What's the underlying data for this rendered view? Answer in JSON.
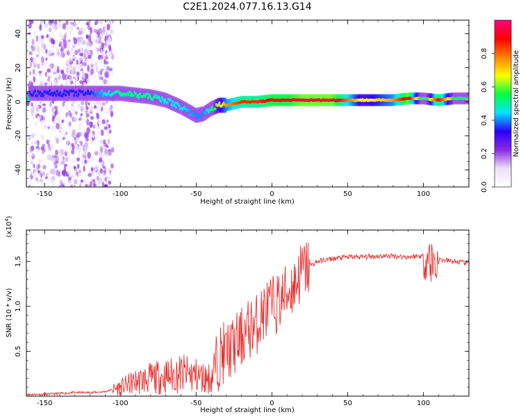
{
  "figure": {
    "title": "C2E1.2024.077.16.13.G14"
  },
  "chart_data": [
    {
      "type": "heatmap",
      "xlabel": "Height of straight line (km)",
      "ylabel": "Frequency (Hz)",
      "xlim": [
        -162,
        130
      ],
      "ylim": [
        -50,
        48
      ],
      "xticks": [
        -150,
        -100,
        -50,
        0,
        50,
        100
      ],
      "yticks": [
        -40,
        -20,
        0,
        20,
        40
      ],
      "colorbar": {
        "label": "Normalized spectral amplitude",
        "range": [
          0,
          1
        ],
        "ticks": [
          0.0,
          0.2,
          0.4,
          0.6,
          0.8
        ],
        "colormap": [
          "#ffffff",
          "#ece0fa",
          "#8a2be2",
          "#2b00ff",
          "#00e5ff",
          "#00ff40",
          "#ffff00",
          "#ff8000",
          "#ff0000",
          "#ff0080"
        ]
      },
      "ridge": {
        "x": [
          -160,
          -150,
          -140,
          -130,
          -120,
          -110,
          -100,
          -90,
          -80,
          -70,
          -60,
          -50,
          -45,
          -40,
          -35,
          -30,
          -20,
          -10,
          0,
          10,
          20,
          40,
          60,
          80,
          90,
          100,
          110,
          120,
          130
        ],
        "freq": [
          5,
          5,
          5,
          5,
          5,
          5,
          5,
          4,
          3,
          1,
          -3,
          -8,
          -7,
          -4,
          -2,
          -2,
          0,
          0,
          1,
          1,
          1,
          1,
          1,
          1,
          2,
          2,
          1,
          2,
          2
        ],
        "amp": [
          0.35,
          0.35,
          0.35,
          0.35,
          0.35,
          0.45,
          0.5,
          0.5,
          0.5,
          0.45,
          0.45,
          0.4,
          0.4,
          0.5,
          0.65,
          0.75,
          0.85,
          0.85,
          0.9,
          0.9,
          0.95,
          0.95,
          0.65,
          0.75,
          0.95,
          0.45,
          0.9,
          0.55,
          0.5
        ]
      }
    },
    {
      "type": "line",
      "xlabel": "Height of straight line (km)",
      "ylabel": "SNR (10 * v/v)",
      "yscale_label": "(x10",
      "yscale_exp": "4",
      "xlim": [
        -162,
        130
      ],
      "ylim": [
        0,
        1.85
      ],
      "xticks": [
        -150,
        -100,
        -50,
        0,
        50,
        100
      ],
      "yticks": [
        0.5,
        1.0,
        1.5
      ],
      "series": [
        {
          "color": "#e53030",
          "x": [
            -162,
            -150,
            -140,
            -130,
            -120,
            -110,
            -100,
            -90,
            -80,
            -70,
            -60,
            -50,
            -45,
            -40,
            -35,
            -30,
            -25,
            -20,
            -15,
            -10,
            -5,
            0,
            5,
            10,
            15,
            20,
            25,
            30,
            40,
            50,
            60,
            70,
            80,
            90,
            95,
            100,
            103,
            105,
            108,
            110,
            120,
            130
          ],
          "y": [
            0.02,
            0.02,
            0.03,
            0.04,
            0.04,
            0.05,
            0.1,
            0.16,
            0.2,
            0.22,
            0.25,
            0.23,
            0.2,
            0.2,
            0.45,
            0.5,
            0.55,
            0.65,
            0.75,
            0.8,
            0.95,
            1.0,
            1.05,
            1.15,
            1.25,
            1.4,
            1.45,
            1.5,
            1.53,
            1.55,
            1.55,
            1.56,
            1.56,
            1.55,
            1.56,
            1.56,
            1.55,
            1.5,
            1.45,
            1.52,
            1.5,
            1.48
          ]
        }
      ]
    }
  ]
}
